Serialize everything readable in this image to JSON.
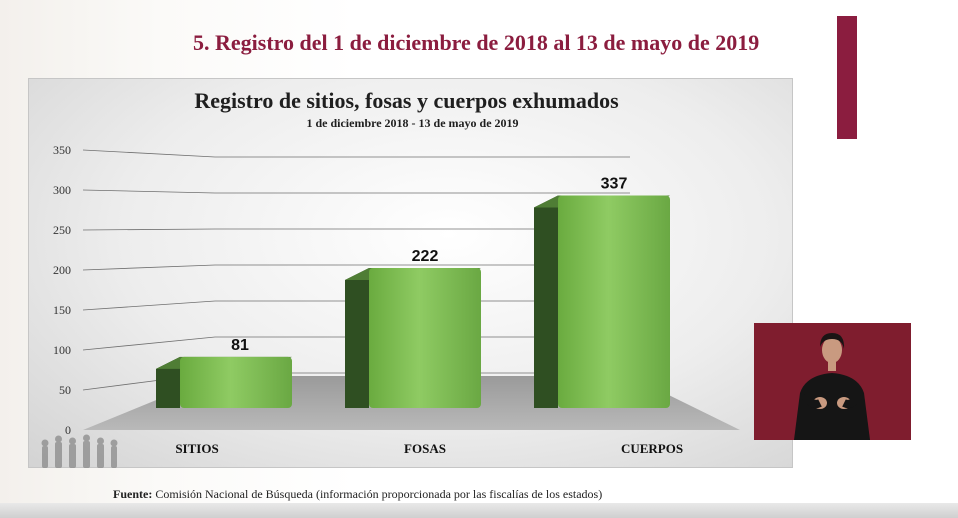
{
  "slide": {
    "title": "5. Registro del 1 de diciembre de 2018 al 13 de mayo de 2019",
    "accent_color": "#8b1d3f",
    "source_label": "Fuente:",
    "source_text": "Comisión Nacional de Búsqueda (información proporcionada por las fiscalías de los estados)"
  },
  "chart_data": {
    "type": "bar",
    "title": "Registro de sitios, fosas y cuerpos exhumados",
    "subtitle": "1 de diciembre 2018 - 13 de mayo de 2019",
    "categories": [
      "SITIOS",
      "FOSAS",
      "CUERPOS"
    ],
    "values": [
      81,
      222,
      337
    ],
    "data_labels": [
      "81",
      "222",
      "337"
    ],
    "ylim": [
      0,
      350
    ],
    "yticks": [
      0,
      50,
      100,
      150,
      200,
      250,
      300,
      350
    ],
    "grid": true,
    "bar_color": "#7fbf55",
    "style": "3d"
  },
  "overlays": {
    "sign_language_interpreter": true,
    "interpreter_bg": "#7f1d2e"
  }
}
